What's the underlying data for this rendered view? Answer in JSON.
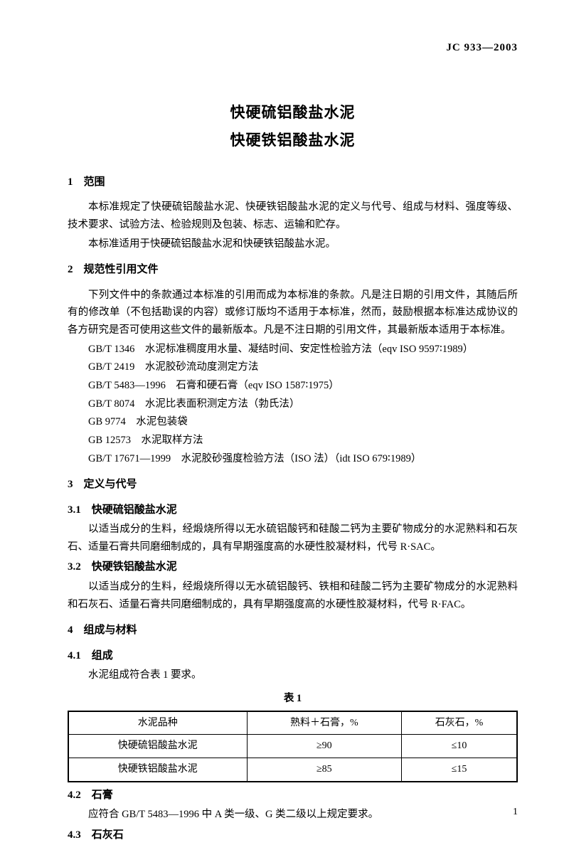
{
  "header_code": "JC 933—2003",
  "title_line1": "快硬硫铝酸盐水泥",
  "title_line2": "快硬铁铝酸盐水泥",
  "s1": {
    "heading": "1　范围",
    "p1": "本标准规定了快硬硫铝酸盐水泥、快硬铁铝酸盐水泥的定义与代号、组成与材料、强度等级、技术要求、试验方法、检验规则及包装、标志、运输和贮存。",
    "p2": "本标准适用于快硬硫铝酸盐水泥和快硬铁铝酸盐水泥。"
  },
  "s2": {
    "heading": "2　规范性引用文件",
    "p1": "下列文件中的条款通过本标准的引用而成为本标准的条款。凡是注日期的引用文件，其随后所有的修改单（不包括勘误的内容）或修订版均不适用于本标准，然而，鼓励根据本标准达成协议的各方研究是否可使用这些文件的最新版本。凡是不注日期的引用文件，其最新版本适用于本标准。",
    "refs": [
      "GB/T 1346　水泥标准稠度用水量、凝结时间、安定性检验方法（eqv ISO 9597∶1989）",
      "GB/T 2419　水泥胶砂流动度测定方法",
      "GB/T 5483—1996　石膏和硬石膏（eqv ISO 1587∶1975）",
      "GB/T 8074　水泥比表面积测定方法（勃氏法）",
      "GB 9774　水泥包装袋",
      "GB 12573　水泥取样方法",
      "GB/T 17671—1999　水泥胶砂强度检验方法（ISO 法）（idt ISO 679∶1989）"
    ]
  },
  "s3": {
    "heading": "3　定义与代号",
    "s3_1_h": "3.1　快硬硫铝酸盐水泥",
    "s3_1_p": "以适当成分的生料，经煅烧所得以无水硫铝酸钙和硅酸二钙为主要矿物成分的水泥熟料和石灰石、适量石膏共同磨细制成的，具有早期强度高的水硬性胶凝材料，代号 R·SAC。",
    "s3_2_h": "3.2　快硬铁铝酸盐水泥",
    "s3_2_p": "以适当成分的生料，经煅烧所得以无水硫铝酸钙、铁相和硅酸二钙为主要矿物成分的水泥熟料和石灰石、适量石膏共同磨细制成的，具有早期强度高的水硬性胶凝材料，代号 R·FAC。"
  },
  "s4": {
    "heading": "4　组成与材料",
    "s4_1_h": "4.1　组成",
    "s4_1_p": "水泥组成符合表 1 要求。",
    "table_caption": "表 1",
    "table": {
      "headers": [
        "水泥品种",
        "熟料＋石膏，%",
        "石灰石，%"
      ],
      "rows": [
        [
          "快硬硫铝酸盐水泥",
          "≥90",
          "≤10"
        ],
        [
          "快硬铁铝酸盐水泥",
          "≥85",
          "≤15"
        ]
      ]
    },
    "s4_2_h": "4.2　石膏",
    "s4_2_p": "应符合 GB/T 5483—1996 中 A 类一级、G 类二级以上规定要求。",
    "s4_3_h": "4.3　石灰石"
  },
  "page_number": "1"
}
